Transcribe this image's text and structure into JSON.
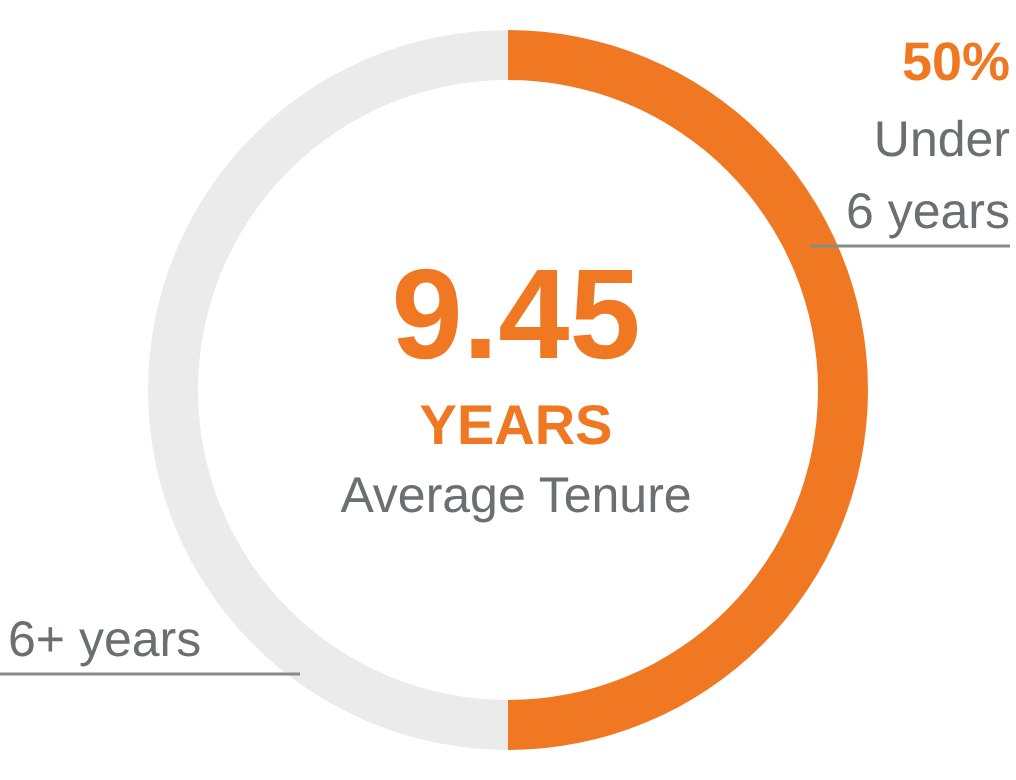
{
  "chart_data": {
    "type": "donut",
    "categories": [
      "Under 6 years",
      "6+ years"
    ],
    "values": [
      50,
      50
    ],
    "colors": [
      "#f07822",
      "#ebebeb"
    ],
    "value_labels": [
      "50%",
      null
    ],
    "annotations": [
      "9.45",
      "YEARS",
      "Average Tenure"
    ]
  }
}
